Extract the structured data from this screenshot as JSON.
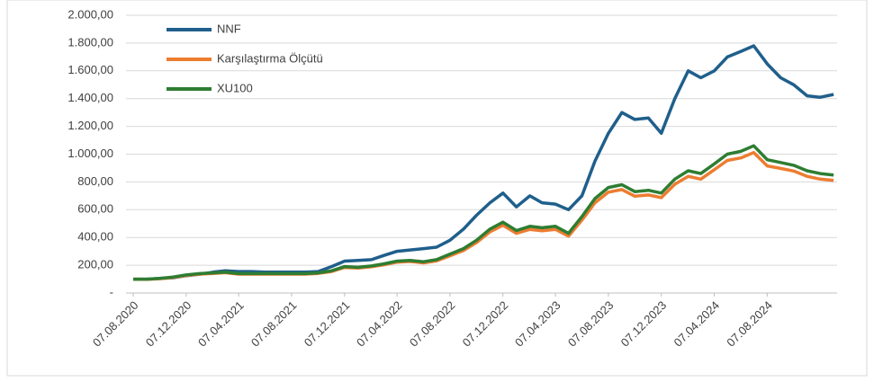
{
  "chart_data": {
    "type": "line",
    "x": [
      "07.08.2020",
      "07.09.2020",
      "07.10.2020",
      "07.11.2020",
      "07.12.2020",
      "07.01.2021",
      "07.02.2021",
      "07.03.2021",
      "07.04.2021",
      "07.05.2021",
      "07.06.2021",
      "07.07.2021",
      "07.08.2021",
      "07.09.2021",
      "07.10.2021",
      "07.11.2021",
      "07.12.2021",
      "07.01.2022",
      "07.02.2022",
      "07.03.2022",
      "07.04.2022",
      "07.05.2022",
      "07.06.2022",
      "07.07.2022",
      "07.08.2022",
      "07.09.2022",
      "07.10.2022",
      "07.11.2022",
      "07.12.2022",
      "07.01.2023",
      "07.02.2023",
      "07.03.2023",
      "07.04.2023",
      "07.05.2023",
      "07.06.2023",
      "07.07.2023",
      "07.08.2023",
      "07.09.2023",
      "07.10.2023",
      "07.11.2023",
      "07.12.2023",
      "07.01.2024",
      "07.02.2024",
      "07.03.2024",
      "07.04.2024",
      "07.05.2024",
      "07.06.2024",
      "07.07.2024",
      "07.08.2024",
      "07.09.2024",
      "07.10.2024",
      "07.11.2024",
      "07.12.2024",
      "07.01.2025"
    ],
    "series": [
      {
        "name": "NNF",
        "color": "#1f5f8b",
        "values": [
          100,
          100,
          105,
          110,
          125,
          135,
          150,
          160,
          155,
          155,
          150,
          150,
          150,
          150,
          155,
          190,
          230,
          235,
          240,
          270,
          300,
          310,
          320,
          330,
          380,
          460,
          560,
          650,
          720,
          620,
          700,
          650,
          640,
          600,
          700,
          950,
          1150,
          1300,
          1250,
          1260,
          1150,
          1400,
          1600,
          1550,
          1600,
          1700,
          1740,
          1780,
          1650,
          1550,
          1500,
          1420,
          1410,
          1430
        ]
      },
      {
        "name": "Karşılaştırma Ölçütü",
        "color": "#ed7d31",
        "values": [
          100,
          99,
          103,
          112,
          126,
          136,
          141,
          146,
          136,
          136,
          136,
          136,
          136,
          136,
          141,
          155,
          184,
          179,
          189,
          203,
          222,
          227,
          217,
          231,
          268,
          306,
          363,
          440,
          488,
          430,
          458,
          448,
          458,
          410,
          525,
          650,
          726,
          745,
          697,
          706,
          687,
          783,
          840,
          820,
          888,
          955,
          973,
          1011,
          915,
          897,
          878,
          840,
          820,
          811
        ]
      },
      {
        "name": "XU100",
        "color": "#2e7d32",
        "values": [
          100,
          100,
          105,
          115,
          130,
          140,
          145,
          150,
          140,
          140,
          140,
          140,
          140,
          140,
          145,
          160,
          190,
          185,
          195,
          210,
          230,
          235,
          225,
          240,
          280,
          320,
          380,
          460,
          510,
          450,
          480,
          470,
          480,
          430,
          550,
          680,
          760,
          780,
          730,
          740,
          720,
          820,
          880,
          860,
          930,
          1000,
          1020,
          1060,
          960,
          940,
          920,
          880,
          860,
          850
        ]
      }
    ],
    "xlim": [
      "07.08.2020",
      "15.01.2025"
    ],
    "xticks": [
      "07.08.2020",
      "07.12.2020",
      "07.04.2021",
      "07.08.2021",
      "07.12.2021",
      "07.04.2022",
      "07.08.2022",
      "07.12.2022",
      "07.04.2023",
      "07.08.2023",
      "07.12.2023",
      "07.04.2024",
      "07.08.2024"
    ],
    "ylim": [
      0,
      2000
    ],
    "yticks": [
      {
        "value": 0,
        "label": "-"
      },
      {
        "value": 200,
        "label": "200,00"
      },
      {
        "value": 400,
        "label": "400,00"
      },
      {
        "value": 600,
        "label": "600,00"
      },
      {
        "value": 800,
        "label": "800,00"
      },
      {
        "value": 1000,
        "label": "1.000,00"
      },
      {
        "value": 1200,
        "label": "1.200,00"
      },
      {
        "value": 1400,
        "label": "1.400,00"
      },
      {
        "value": 1600,
        "label": "1.600,00"
      },
      {
        "value": 1800,
        "label": "1.800,00"
      },
      {
        "value": 2000,
        "label": "2.000,00"
      }
    ],
    "grid": true,
    "legend": "top-left"
  }
}
